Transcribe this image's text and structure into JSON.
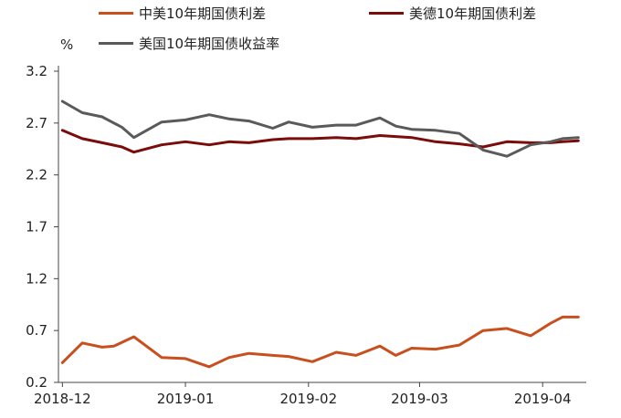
{
  "chart_data": {
    "type": "line",
    "ylabel": "%",
    "ylim": [
      0.2,
      3.2
    ],
    "yticks": [
      "0.2",
      "0.7",
      "1.2",
      "1.7",
      "2.2",
      "2.7",
      "3.2"
    ],
    "xticks": [
      "2018-12",
      "2019-01",
      "2019-02",
      "2019-03",
      "2019-04"
    ],
    "grid": false,
    "legend_position": "top",
    "series": [
      {
        "name": "中美10年期国债利差",
        "color": "#c8501e",
        "x": [
          "2018-12-01",
          "2018-12-06",
          "2018-12-11",
          "2018-12-14",
          "2018-12-19",
          "2018-12-26",
          "2019-01-01",
          "2019-01-07",
          "2019-01-12",
          "2019-01-17",
          "2019-01-23",
          "2019-01-27",
          "2019-02-02",
          "2019-02-08",
          "2019-02-13",
          "2019-02-19",
          "2019-02-23",
          "2019-02-27",
          "2019-03-05",
          "2019-03-11",
          "2019-03-17",
          "2019-03-23",
          "2019-03-29",
          "2019-04-03",
          "2019-04-06",
          "2019-04-10"
        ],
        "values": [
          0.39,
          0.58,
          0.54,
          0.55,
          0.64,
          0.44,
          0.43,
          0.35,
          0.44,
          0.48,
          0.46,
          0.45,
          0.4,
          0.49,
          0.46,
          0.55,
          0.46,
          0.53,
          0.52,
          0.56,
          0.7,
          0.72,
          0.65,
          0.77,
          0.83,
          0.83
        ]
      },
      {
        "name": "美德10年期国债利差",
        "color": "#7a0c0c",
        "x": [
          "2018-12-01",
          "2018-12-06",
          "2018-12-11",
          "2018-12-16",
          "2018-12-19",
          "2018-12-26",
          "2019-01-01",
          "2019-01-07",
          "2019-01-12",
          "2019-01-17",
          "2019-01-23",
          "2019-01-27",
          "2019-02-02",
          "2019-02-08",
          "2019-02-13",
          "2019-02-19",
          "2019-02-23",
          "2019-02-27",
          "2019-03-05",
          "2019-03-11",
          "2019-03-17",
          "2019-03-23",
          "2019-03-29",
          "2019-04-03",
          "2019-04-06",
          "2019-04-10"
        ],
        "values": [
          2.63,
          2.55,
          2.51,
          2.47,
          2.42,
          2.49,
          2.52,
          2.49,
          2.52,
          2.51,
          2.54,
          2.55,
          2.55,
          2.56,
          2.55,
          2.58,
          2.57,
          2.56,
          2.52,
          2.5,
          2.47,
          2.52,
          2.51,
          2.51,
          2.52,
          2.53
        ]
      },
      {
        "name": "美国10年期国债收益率",
        "color": "#5a5a5a",
        "x": [
          "2018-12-01",
          "2018-12-06",
          "2018-12-11",
          "2018-12-16",
          "2018-12-19",
          "2018-12-26",
          "2019-01-01",
          "2019-01-07",
          "2019-01-12",
          "2019-01-17",
          "2019-01-23",
          "2019-01-27",
          "2019-02-02",
          "2019-02-08",
          "2019-02-13",
          "2019-02-19",
          "2019-02-23",
          "2019-02-27",
          "2019-03-05",
          "2019-03-11",
          "2019-03-17",
          "2019-03-23",
          "2019-03-29",
          "2019-04-03",
          "2019-04-06",
          "2019-04-10"
        ],
        "values": [
          2.91,
          2.8,
          2.76,
          2.66,
          2.56,
          2.71,
          2.73,
          2.78,
          2.74,
          2.72,
          2.65,
          2.71,
          2.66,
          2.68,
          2.68,
          2.75,
          2.67,
          2.64,
          2.63,
          2.6,
          2.44,
          2.38,
          2.49,
          2.52,
          2.55,
          2.56
        ]
      }
    ]
  }
}
